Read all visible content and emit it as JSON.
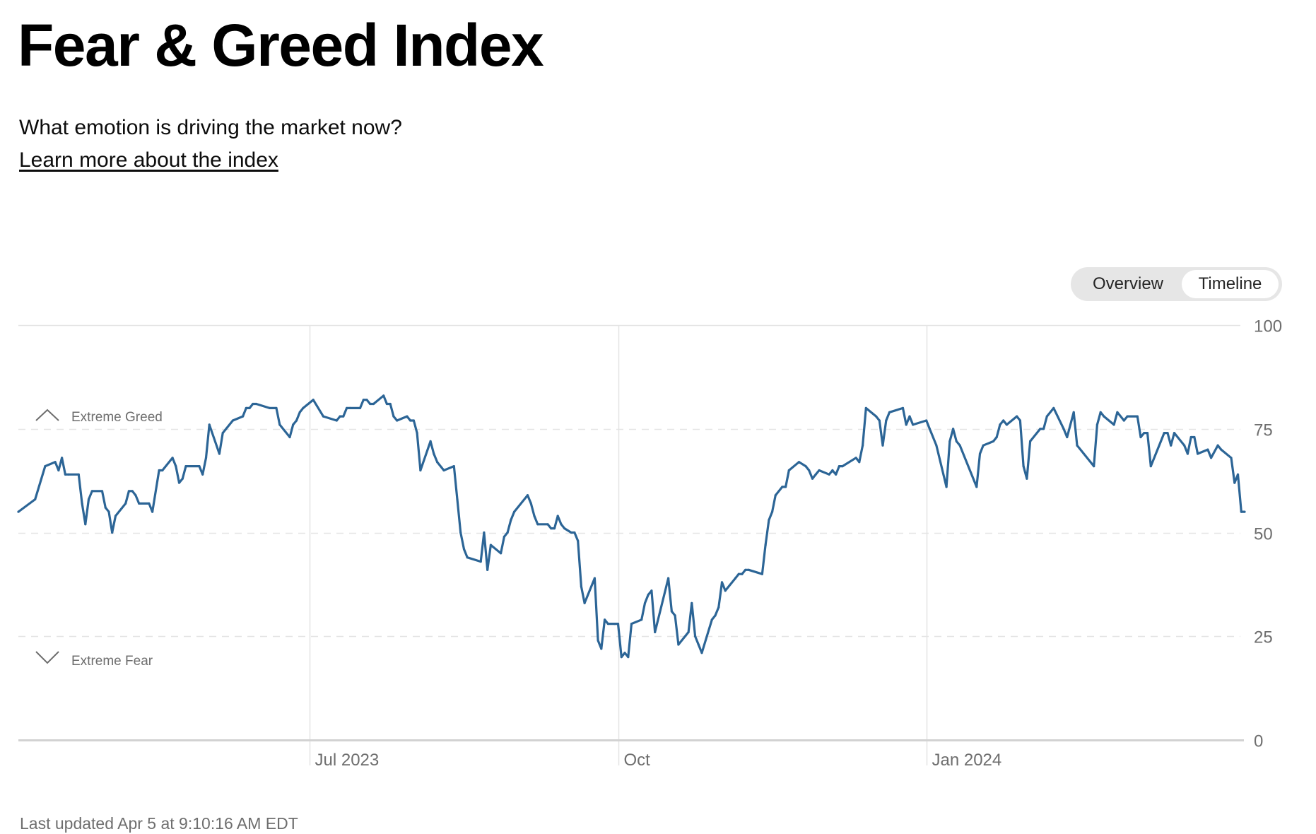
{
  "header": {
    "title": "Fear & Greed Index",
    "subtitle": "What emotion is driving the market now?",
    "learn_more_link": "Learn more about the index"
  },
  "toggle": {
    "options": [
      "Overview",
      "Timeline"
    ],
    "selected": "Timeline"
  },
  "footer": {
    "last_updated": "Last updated Apr 5 at 9:10:16 AM EDT"
  },
  "colors": {
    "line": "#2c6596",
    "grid": "#e4e4e4",
    "axis_text": "#6e6e6e",
    "toggle_bg": "#e6e6e6"
  },
  "chart_data": {
    "type": "line",
    "title": "Fear & Greed Index",
    "xlabel": "",
    "ylabel": "",
    "x_unit": "days since 2023-04-05",
    "xlim": [
      0,
      366
    ],
    "ylim": [
      0,
      100
    ],
    "y_ticks": [
      0,
      25,
      50,
      75,
      100
    ],
    "y_axis_side": "right",
    "x_ticks": [
      {
        "day": 87,
        "label": "Jul 2023"
      },
      {
        "day": 179,
        "label": "Oct"
      },
      {
        "day": 271,
        "label": "Jan 2024"
      }
    ],
    "zones": [
      {
        "label": "Extreme Greed",
        "threshold": 75,
        "icon": "chevron-up-icon"
      },
      {
        "label": "Extreme Fear",
        "threshold": 25,
        "icon": "chevron-down-icon"
      }
    ],
    "grid": true,
    "series": [
      {
        "name": "Fear & Greed Index",
        "points": [
          [
            0,
            55
          ],
          [
            5,
            58
          ],
          [
            8,
            66
          ],
          [
            11,
            67
          ],
          [
            12,
            65
          ],
          [
            13,
            68
          ],
          [
            14,
            64
          ],
          [
            15,
            64
          ],
          [
            18,
            64
          ],
          [
            19,
            57
          ],
          [
            20,
            52
          ],
          [
            21,
            58
          ],
          [
            22,
            60
          ],
          [
            25,
            60
          ],
          [
            26,
            56
          ],
          [
            27,
            55
          ],
          [
            28,
            50
          ],
          [
            29,
            54
          ],
          [
            32,
            57
          ],
          [
            33,
            60
          ],
          [
            34,
            60
          ],
          [
            35,
            59
          ],
          [
            36,
            57
          ],
          [
            39,
            57
          ],
          [
            40,
            55
          ],
          [
            42,
            65
          ],
          [
            43,
            65
          ],
          [
            46,
            68
          ],
          [
            47,
            66
          ],
          [
            48,
            62
          ],
          [
            49,
            63
          ],
          [
            50,
            66
          ],
          [
            54,
            66
          ],
          [
            55,
            64
          ],
          [
            56,
            68
          ],
          [
            57,
            76
          ],
          [
            60,
            69
          ],
          [
            61,
            74
          ],
          [
            62,
            75
          ],
          [
            64,
            77
          ],
          [
            67,
            78
          ],
          [
            68,
            80
          ],
          [
            69,
            80
          ],
          [
            70,
            81
          ],
          [
            71,
            81
          ],
          [
            75,
            80
          ],
          [
            77,
            80
          ],
          [
            78,
            76
          ],
          [
            81,
            73
          ],
          [
            82,
            76
          ],
          [
            83,
            77
          ],
          [
            84,
            79
          ],
          [
            85,
            80
          ],
          [
            88,
            82
          ],
          [
            91,
            78
          ],
          [
            95,
            77
          ],
          [
            96,
            78
          ],
          [
            97,
            78
          ],
          [
            98,
            80
          ],
          [
            99,
            80
          ],
          [
            102,
            80
          ],
          [
            103,
            82
          ],
          [
            104,
            82
          ],
          [
            105,
            81
          ],
          [
            106,
            81
          ],
          [
            109,
            83
          ],
          [
            110,
            81
          ],
          [
            111,
            81
          ],
          [
            112,
            78
          ],
          [
            113,
            77
          ],
          [
            116,
            78
          ],
          [
            117,
            77
          ],
          [
            118,
            77
          ],
          [
            119,
            74
          ],
          [
            120,
            65
          ],
          [
            123,
            72
          ],
          [
            124,
            69
          ],
          [
            125,
            67
          ],
          [
            127,
            65
          ],
          [
            130,
            66
          ],
          [
            131,
            58
          ],
          [
            132,
            50
          ],
          [
            133,
            46
          ],
          [
            134,
            44
          ],
          [
            138,
            43
          ],
          [
            139,
            50
          ],
          [
            140,
            41
          ],
          [
            141,
            47
          ],
          [
            144,
            45
          ],
          [
            145,
            49
          ],
          [
            146,
            50
          ],
          [
            147,
            53
          ],
          [
            148,
            55
          ],
          [
            152,
            59
          ],
          [
            153,
            57
          ],
          [
            154,
            54
          ],
          [
            155,
            52
          ],
          [
            158,
            52
          ],
          [
            159,
            51
          ],
          [
            160,
            51
          ],
          [
            161,
            54
          ],
          [
            162,
            52
          ],
          [
            163,
            51
          ],
          [
            165,
            50
          ],
          [
            166,
            50
          ],
          [
            167,
            48
          ],
          [
            168,
            37
          ],
          [
            169,
            33
          ],
          [
            172,
            39
          ],
          [
            173,
            24
          ],
          [
            174,
            22
          ],
          [
            175,
            29
          ],
          [
            176,
            28
          ],
          [
            178,
            28
          ],
          [
            179,
            28
          ],
          [
            180,
            20
          ],
          [
            181,
            21
          ],
          [
            182,
            20
          ],
          [
            183,
            28
          ],
          [
            186,
            29
          ],
          [
            187,
            33
          ],
          [
            188,
            35
          ],
          [
            189,
            36
          ],
          [
            190,
            26
          ],
          [
            194,
            39
          ],
          [
            195,
            31
          ],
          [
            196,
            30
          ],
          [
            197,
            23
          ],
          [
            200,
            26
          ],
          [
            201,
            33
          ],
          [
            202,
            25
          ],
          [
            203,
            23
          ],
          [
            204,
            21
          ],
          [
            207,
            29
          ],
          [
            208,
            30
          ],
          [
            209,
            32
          ],
          [
            210,
            38
          ],
          [
            211,
            36
          ],
          [
            214,
            39
          ],
          [
            215,
            40
          ],
          [
            216,
            40
          ],
          [
            217,
            41
          ],
          [
            218,
            41
          ],
          [
            222,
            40
          ],
          [
            223,
            47
          ],
          [
            224,
            53
          ],
          [
            225,
            55
          ],
          [
            226,
            59
          ],
          [
            228,
            61
          ],
          [
            229,
            61
          ],
          [
            230,
            65
          ],
          [
            233,
            67
          ],
          [
            235,
            66
          ],
          [
            236,
            65
          ],
          [
            237,
            63
          ],
          [
            238,
            64
          ],
          [
            239,
            65
          ],
          [
            242,
            64
          ],
          [
            243,
            65
          ],
          [
            244,
            64
          ],
          [
            245,
            66
          ],
          [
            246,
            66
          ],
          [
            250,
            68
          ],
          [
            251,
            67
          ],
          [
            252,
            71
          ],
          [
            253,
            80
          ],
          [
            256,
            78
          ],
          [
            257,
            77
          ],
          [
            258,
            71
          ],
          [
            259,
            77
          ],
          [
            260,
            79
          ],
          [
            264,
            80
          ],
          [
            265,
            76
          ],
          [
            266,
            78
          ],
          [
            267,
            76
          ],
          [
            271,
            77
          ],
          [
            272,
            75
          ],
          [
            274,
            71
          ],
          [
            277,
            61
          ],
          [
            278,
            72
          ],
          [
            279,
            75
          ],
          [
            280,
            72
          ],
          [
            281,
            71
          ],
          [
            286,
            61
          ],
          [
            287,
            69
          ],
          [
            288,
            71
          ],
          [
            291,
            72
          ],
          [
            292,
            73
          ],
          [
            293,
            76
          ],
          [
            294,
            77
          ],
          [
            295,
            76
          ],
          [
            298,
            78
          ],
          [
            299,
            77
          ],
          [
            300,
            66
          ],
          [
            301,
            63
          ],
          [
            302,
            72
          ],
          [
            305,
            75
          ],
          [
            306,
            75
          ],
          [
            307,
            78
          ],
          [
            309,
            80
          ],
          [
            312,
            75
          ],
          [
            313,
            73
          ],
          [
            315,
            79
          ],
          [
            316,
            71
          ],
          [
            321,
            66
          ],
          [
            322,
            76
          ],
          [
            323,
            79
          ],
          [
            324,
            78
          ],
          [
            327,
            76
          ],
          [
            328,
            79
          ],
          [
            330,
            77
          ],
          [
            331,
            78
          ],
          [
            334,
            78
          ],
          [
            335,
            73
          ],
          [
            336,
            74
          ],
          [
            337,
            74
          ],
          [
            338,
            66
          ],
          [
            341,
            72
          ],
          [
            342,
            74
          ],
          [
            343,
            74
          ],
          [
            344,
            71
          ],
          [
            345,
            74
          ],
          [
            348,
            71
          ],
          [
            349,
            69
          ],
          [
            350,
            73
          ],
          [
            351,
            73
          ],
          [
            352,
            69
          ],
          [
            355,
            70
          ],
          [
            356,
            68
          ],
          [
            358,
            71
          ],
          [
            359,
            70
          ],
          [
            362,
            68
          ],
          [
            363,
            62
          ],
          [
            364,
            64
          ],
          [
            365,
            55
          ],
          [
            366,
            55
          ]
        ]
      }
    ]
  }
}
